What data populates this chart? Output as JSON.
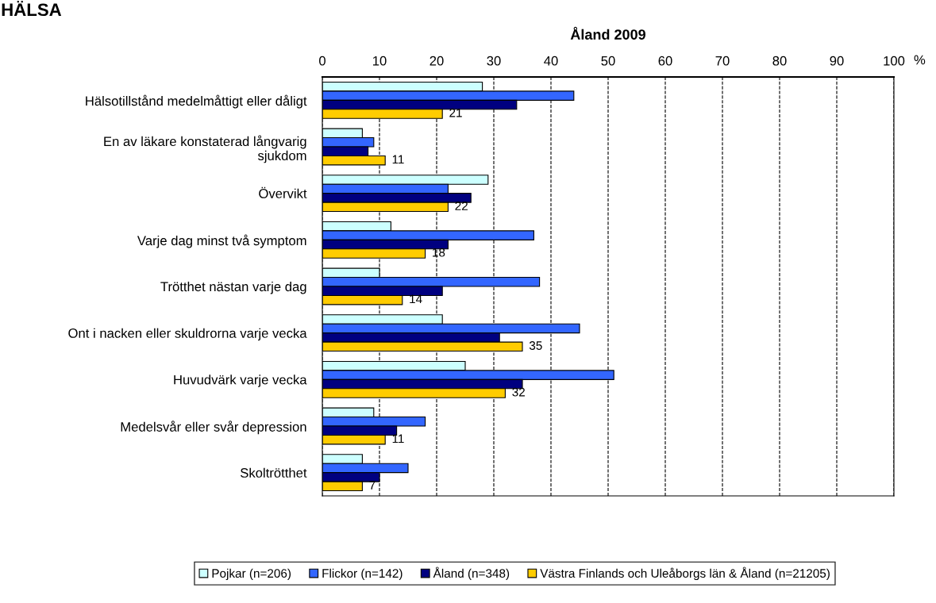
{
  "chart_data": {
    "type": "bar",
    "orientation": "horizontal",
    "title": "Åland 2009",
    "xlabel": "%",
    "annotations": [
      "HÄLSA"
    ],
    "categories": [
      "Hälsotillstånd medelmåttigt eller dåligt",
      "En av läkare konstaterad långvarig\nsjukdom",
      "Övervikt",
      "Varje dag minst två symptom",
      "Trötthet nästan varje dag",
      "Ont i nacken eller skuldrorna varje vecka",
      "Huvudvärk varje vecka",
      "Medelsvår eller svår depression",
      "Skoltrötthet"
    ],
    "series": [
      {
        "name": "Pojkar (n=206)",
        "color": "#ccffff",
        "values": [
          28,
          7,
          29,
          12,
          10,
          21,
          25,
          9,
          7
        ]
      },
      {
        "name": "Flickor (n=142)",
        "color": "#3366ff",
        "values": [
          44,
          9,
          22,
          37,
          38,
          45,
          51,
          18,
          15
        ]
      },
      {
        "name": "Åland (n=348)",
        "color": "#000080",
        "values": [
          34,
          8,
          26,
          22,
          21,
          31,
          35,
          13,
          10
        ]
      },
      {
        "name": "Västra Finlands och Uleåborgs län & Åland (n=21205)",
        "color": "#ffcc00",
        "values": [
          21,
          11,
          22,
          18,
          14,
          35,
          32,
          11,
          7
        ],
        "value_labels": [
          "21",
          "11",
          "22",
          "18",
          "14",
          "35",
          "32",
          "11",
          "7"
        ]
      }
    ],
    "xlim": [
      0,
      100
    ],
    "xticks": [
      0,
      10,
      20,
      30,
      40,
      50,
      60,
      70,
      80,
      90,
      100
    ],
    "grid": "x",
    "legend": "bottom"
  }
}
